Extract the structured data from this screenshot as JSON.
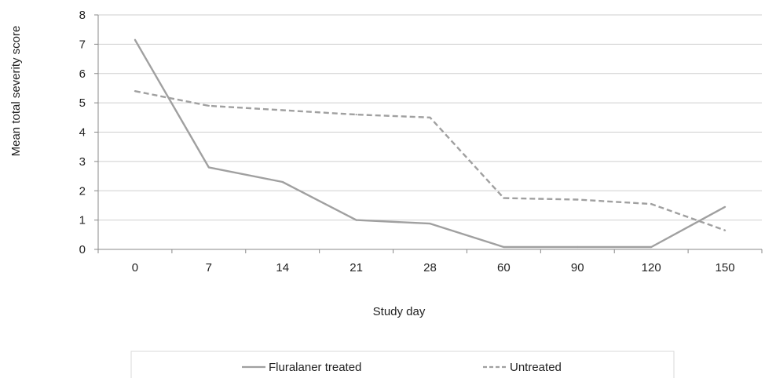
{
  "chart_data": {
    "type": "line",
    "title": "",
    "xlabel": "Study day",
    "ylabel": "Mean total severity score",
    "categories": [
      "0",
      "7",
      "14",
      "21",
      "28",
      "60",
      "90",
      "120",
      "150"
    ],
    "ylim": [
      0,
      8
    ],
    "yticks": [
      0,
      1,
      2,
      3,
      4,
      5,
      6,
      7,
      8
    ],
    "grid": true,
    "legend_position": "bottom",
    "series": [
      {
        "name": "Fluralaner treated",
        "values": [
          7.15,
          2.8,
          2.3,
          1.0,
          0.88,
          0.08,
          0.08,
          0.08,
          1.45
        ],
        "style": "solid",
        "color": "#a0a0a0"
      },
      {
        "name": "Untreated",
        "values": [
          5.4,
          4.9,
          4.75,
          4.6,
          4.5,
          1.75,
          1.7,
          1.55,
          0.65
        ],
        "style": "dashed",
        "color": "#a0a0a0"
      }
    ]
  }
}
